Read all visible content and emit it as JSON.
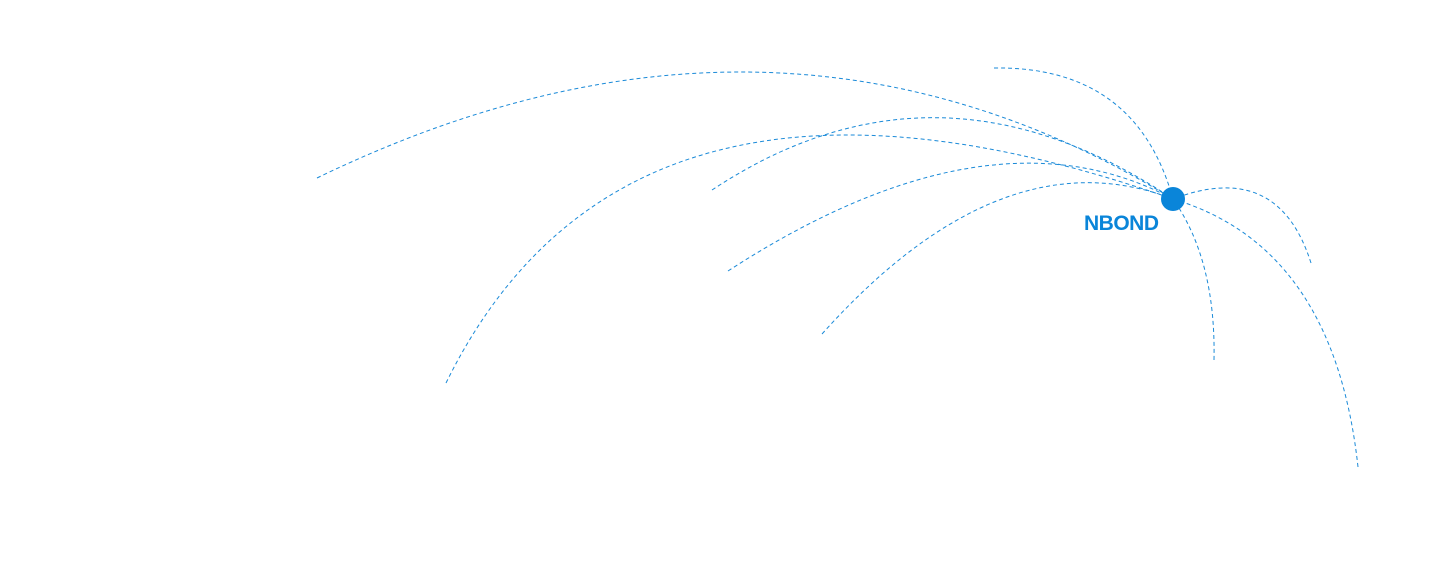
{
  "brand": {
    "name": "NBOND",
    "color": "#0a85d9"
  },
  "arcs": {
    "style": "dashed",
    "count": 9,
    "color": "#1a8ad8"
  }
}
